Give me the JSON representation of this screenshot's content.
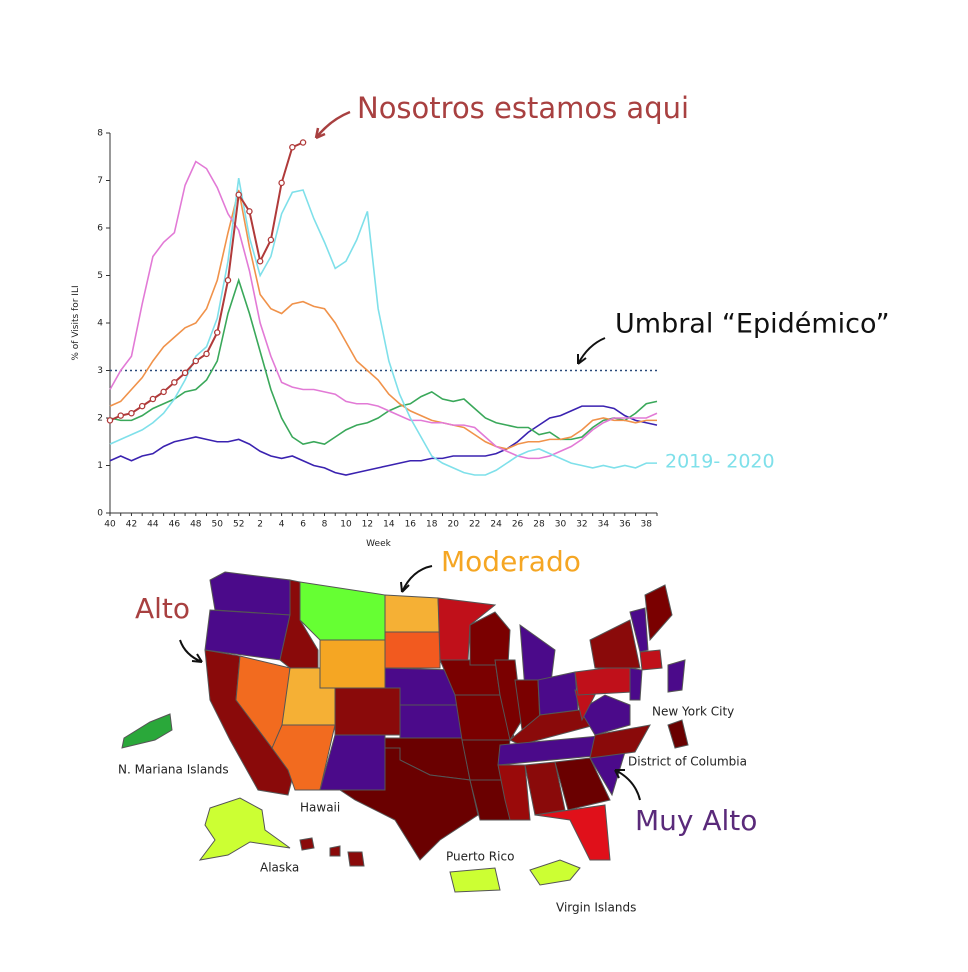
{
  "chart_data": {
    "type": "line",
    "y_label": "% of Visits for ILI",
    "x_label": "Week",
    "categories": [
      "40",
      null,
      "42",
      null,
      "44",
      null,
      "46",
      null,
      "48",
      null,
      "50",
      null,
      "52",
      null,
      "2",
      null,
      "4",
      null,
      "6",
      null,
      "8",
      null,
      "10",
      null,
      "12",
      null,
      "14",
      null,
      "16",
      null,
      "18",
      null,
      "20",
      null,
      "22",
      null,
      "24",
      null,
      "26",
      null,
      "28",
      null,
      "30",
      null,
      "32",
      null,
      "34",
      null,
      "36",
      null,
      "38",
      null
    ],
    "ylim": [
      0,
      8
    ],
    "yticks": [
      0,
      1,
      2,
      3,
      4,
      5,
      6,
      7,
      8
    ],
    "threshold": 3,
    "threshold_label": "Umbral “Epidémico”",
    "annotation": "Nosotros estamos aqui",
    "series": [
      {
        "color": "#b03a3a",
        "markers": true,
        "values": [
          1.95,
          2.05,
          2.1,
          2.25,
          2.4,
          2.55,
          2.75,
          2.95,
          3.2,
          3.35,
          3.8,
          4.9,
          6.7,
          6.35,
          5.3,
          5.75,
          6.95,
          7.7,
          7.8,
          null,
          null,
          null,
          null,
          null,
          null,
          null,
          null,
          null,
          null,
          null,
          null,
          null,
          null,
          null,
          null,
          null,
          null,
          null,
          null,
          null,
          null,
          null,
          null,
          null,
          null,
          null,
          null,
          null,
          null,
          null,
          null,
          null
        ]
      },
      {
        "name": "2019- 2020",
        "color": "#7fe0ea",
        "values": [
          1.45,
          1.55,
          1.65,
          1.75,
          1.9,
          2.1,
          2.4,
          2.8,
          3.3,
          3.5,
          4.1,
          5.3,
          7.05,
          5.8,
          5.0,
          5.4,
          6.3,
          6.75,
          6.8,
          6.2,
          5.7,
          5.15,
          5.3,
          5.75,
          6.35,
          4.3,
          3.2,
          2.5,
          2.0,
          1.6,
          1.2,
          1.05,
          0.95,
          0.85,
          0.8,
          0.8,
          0.9,
          1.05,
          1.2,
          1.3,
          1.35,
          1.25,
          1.15,
          1.05,
          1.0,
          0.95,
          1.0,
          0.95,
          1.0,
          0.95,
          1.05,
          1.05
        ]
      },
      {
        "color": "#e27ad6",
        "values": [
          2.6,
          3.0,
          3.3,
          4.4,
          5.4,
          5.7,
          5.9,
          6.9,
          7.4,
          7.25,
          6.85,
          6.3,
          5.95,
          5.1,
          4.0,
          3.3,
          2.75,
          2.65,
          2.6,
          2.6,
          2.55,
          2.5,
          2.35,
          2.3,
          2.3,
          2.25,
          2.15,
          2.05,
          1.95,
          1.95,
          1.9,
          1.9,
          1.85,
          1.85,
          1.8,
          1.6,
          1.4,
          1.3,
          1.2,
          1.15,
          1.15,
          1.2,
          1.3,
          1.4,
          1.55,
          1.75,
          1.9,
          2.0,
          2.0,
          2.0,
          2.0,
          2.1
        ]
      },
      {
        "color": "#f0924a",
        "values": [
          2.25,
          2.35,
          2.6,
          2.85,
          3.2,
          3.5,
          3.7,
          3.9,
          4.0,
          4.3,
          4.9,
          5.9,
          6.8,
          5.6,
          4.6,
          4.3,
          4.2,
          4.4,
          4.45,
          4.35,
          4.3,
          4.0,
          3.6,
          3.2,
          3.0,
          2.8,
          2.5,
          2.3,
          2.15,
          2.05,
          1.95,
          1.9,
          1.85,
          1.8,
          1.65,
          1.5,
          1.4,
          1.35,
          1.45,
          1.5,
          1.5,
          1.55,
          1.55,
          1.6,
          1.75,
          1.95,
          2.0,
          1.95,
          1.95,
          1.9,
          1.95,
          1.95
        ]
      },
      {
        "color": "#3aa85a",
        "values": [
          2.0,
          1.95,
          1.95,
          2.05,
          2.2,
          2.3,
          2.4,
          2.55,
          2.6,
          2.8,
          3.2,
          4.2,
          4.9,
          4.2,
          3.4,
          2.6,
          2.0,
          1.6,
          1.45,
          1.5,
          1.45,
          1.6,
          1.75,
          1.85,
          1.9,
          2.0,
          2.15,
          2.25,
          2.3,
          2.45,
          2.55,
          2.4,
          2.35,
          2.4,
          2.2,
          2.0,
          1.9,
          1.85,
          1.8,
          1.8,
          1.65,
          1.7,
          1.55,
          1.55,
          1.6,
          1.8,
          1.95,
          2.0,
          1.95,
          2.1,
          2.3,
          2.35
        ]
      },
      {
        "color": "#3a22b0",
        "values": [
          1.1,
          1.2,
          1.1,
          1.2,
          1.25,
          1.4,
          1.5,
          1.55,
          1.6,
          1.55,
          1.5,
          1.5,
          1.55,
          1.45,
          1.3,
          1.2,
          1.15,
          1.2,
          1.1,
          1.0,
          0.95,
          0.85,
          0.8,
          0.85,
          0.9,
          0.95,
          1.0,
          1.05,
          1.1,
          1.1,
          1.15,
          1.15,
          1.2,
          1.2,
          1.2,
          1.2,
          1.25,
          1.35,
          1.5,
          1.7,
          1.85,
          2.0,
          2.05,
          2.15,
          2.25,
          2.25,
          2.25,
          2.2,
          2.05,
          1.95,
          1.9,
          1.85
        ]
      }
    ]
  },
  "map": {
    "levels": {
      "moderate": "Moderado",
      "high": "Alto",
      "very_high": "Muy Alto"
    },
    "place_labels": [
      "N. Mariana Islands",
      "Hawaii",
      "Alaska",
      "Puerto Rico",
      "Virgin Islands",
      "New York City",
      "District of Columbia"
    ]
  }
}
